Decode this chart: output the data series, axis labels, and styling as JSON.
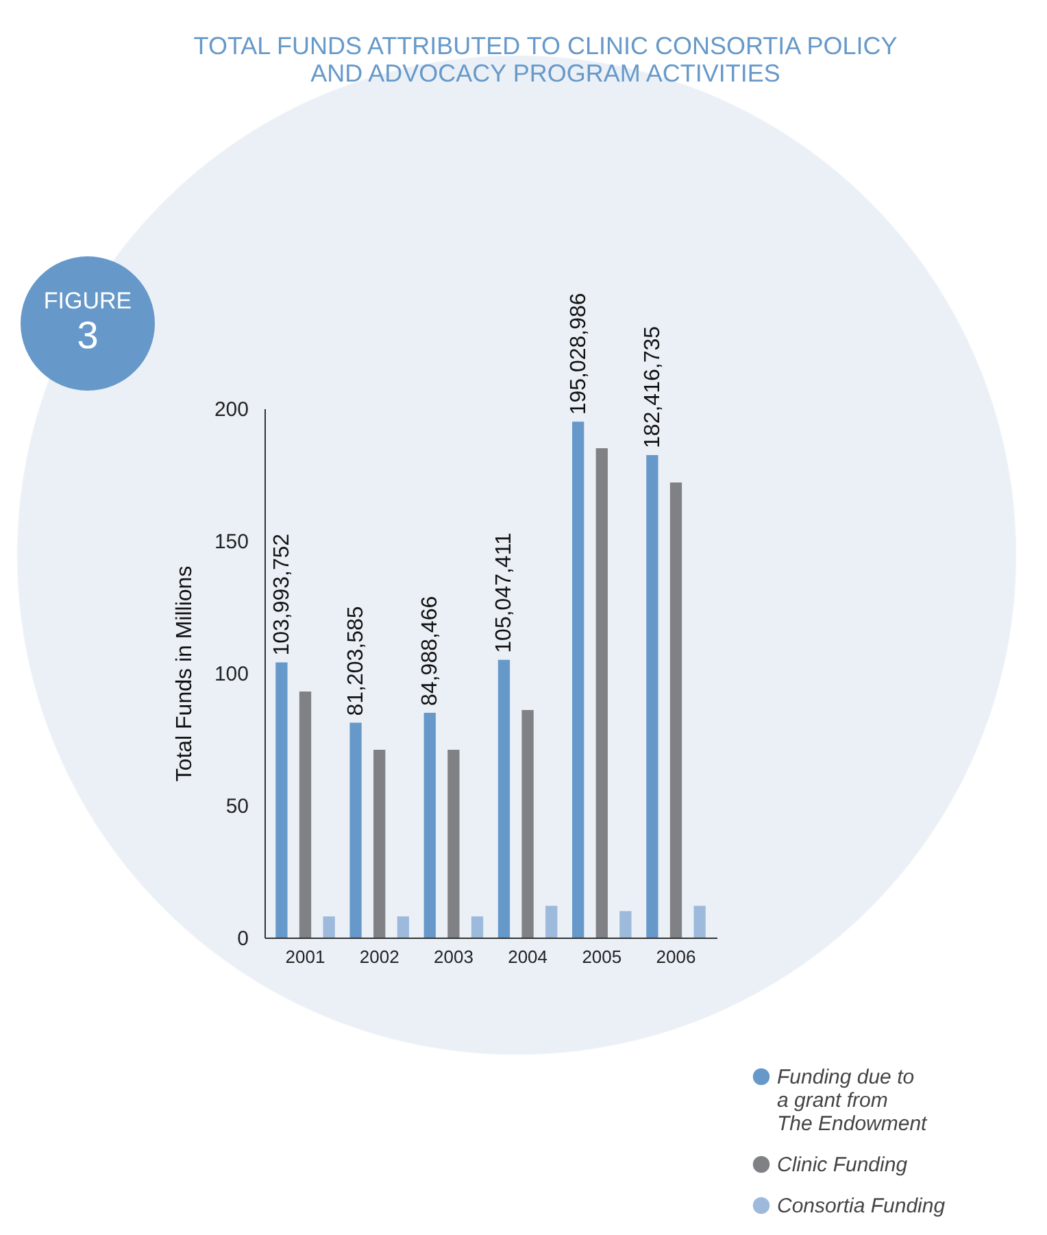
{
  "chart_data": {
    "type": "bar",
    "title": [
      "TOTAL FUNDS ATTRIBUTED TO CLINIC CONSORTIA POLICY",
      "AND ADVOCACY PROGRAM ACTIVITIES"
    ],
    "annotations": [
      "FIGURE 3",
      "103,993,752",
      "81,203,585",
      "84,988,466",
      "105,047,411",
      "195,028,986",
      "182,416,735"
    ],
    "categories": [
      "2001",
      "2002",
      "2003",
      "2004",
      "2005",
      "2006"
    ],
    "ylabel": "Total Funds in Millions",
    "ylim": [
      0,
      200
    ],
    "yticks": [
      0,
      50,
      100,
      150,
      200
    ],
    "series": [
      {
        "name": "Funding due to\na grant from\nThe Endowment",
        "color": "#6699c9",
        "values": [
          104.0,
          81.2,
          85.0,
          105.0,
          195.0,
          182.4
        ]
      },
      {
        "name": "Clinic Funding",
        "color": "#808184",
        "values": [
          93,
          71,
          71,
          86,
          185,
          172
        ]
      },
      {
        "name": "Consortia Funding",
        "color": "#9dbadc",
        "values": [
          8,
          8,
          8,
          12,
          10,
          12
        ]
      }
    ],
    "legend": "bottom right",
    "grid": false
  }
}
